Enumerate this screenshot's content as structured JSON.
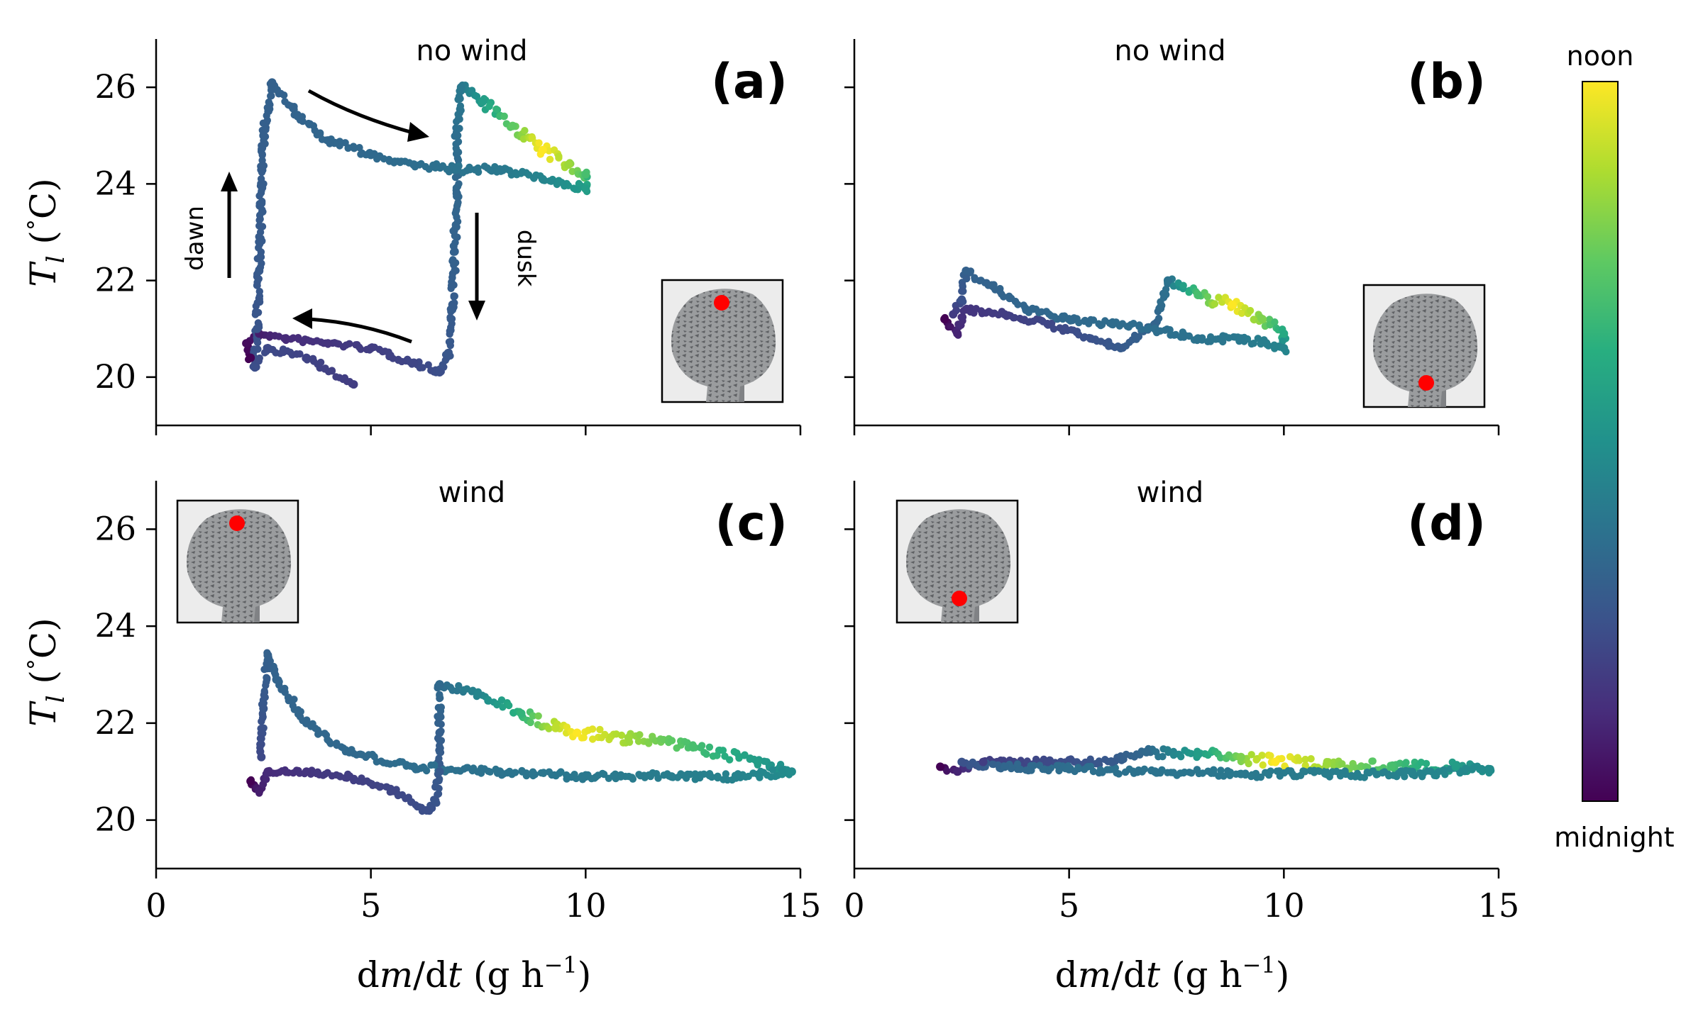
{
  "figure": {
    "xlabel_parts": [
      "d",
      "m",
      "/",
      "d",
      "t",
      " (g h",
      "−1",
      ")"
    ],
    "ylabel_parts": [
      "T",
      "l",
      " (",
      "°",
      "C)"
    ],
    "colorbar": {
      "top_label": "noon",
      "bottom_label": "midnight",
      "colormap": [
        "#440154",
        "#472d7b",
        "#3b528b",
        "#2c728e",
        "#21918c",
        "#28ae80",
        "#5ec962",
        "#addc30",
        "#fde725"
      ]
    }
  },
  "chart_data": [
    {
      "type": "scatter",
      "panel": "(a)",
      "condition": "no wind",
      "xlim": [
        0,
        15
      ],
      "ylim": [
        19,
        27
      ],
      "xticks": [
        0,
        5,
        10,
        15
      ],
      "yticks": [
        20,
        22,
        24,
        26
      ],
      "show_xticklabels": false,
      "inset_marker": "top",
      "annotations": {
        "dawn": "dawn",
        "dusk": "dusk"
      },
      "trajectory": [
        {
          "x": 2.2,
          "y": 20.4,
          "t": 0.0
        },
        {
          "x": 2.1,
          "y": 20.7,
          "t": 0.03
        },
        {
          "x": 2.4,
          "y": 20.9,
          "t": 0.08
        },
        {
          "x": 3.0,
          "y": 20.8,
          "t": 0.12
        },
        {
          "x": 4.0,
          "y": 20.7,
          "t": 0.15
        },
        {
          "x": 5.0,
          "y": 20.6,
          "t": 0.18
        },
        {
          "x": 6.0,
          "y": 20.3,
          "t": 0.21
        },
        {
          "x": 6.6,
          "y": 20.1,
          "t": 0.24
        },
        {
          "x": 6.8,
          "y": 20.5,
          "t": 0.27
        },
        {
          "x": 6.9,
          "y": 21.5,
          "t": 0.29
        },
        {
          "x": 6.95,
          "y": 22.6,
          "t": 0.31
        },
        {
          "x": 7.0,
          "y": 23.8,
          "t": 0.33
        },
        {
          "x": 7.0,
          "y": 25.0,
          "t": 0.36
        },
        {
          "x": 7.1,
          "y": 26.0,
          "t": 0.4
        },
        {
          "x": 7.6,
          "y": 25.7,
          "t": 0.55
        },
        {
          "x": 8.3,
          "y": 25.2,
          "t": 0.75
        },
        {
          "x": 9.0,
          "y": 24.7,
          "t": 1.0
        },
        {
          "x": 9.6,
          "y": 24.4,
          "t": 0.85
        },
        {
          "x": 10.0,
          "y": 24.2,
          "t": 0.7
        },
        {
          "x": 10.0,
          "y": 23.9,
          "t": 0.55
        },
        {
          "x": 9.0,
          "y": 24.1,
          "t": 0.45
        },
        {
          "x": 8.0,
          "y": 24.3,
          "t": 0.4
        },
        {
          "x": 7.0,
          "y": 24.3,
          "t": 0.38
        },
        {
          "x": 6.0,
          "y": 24.4,
          "t": 0.36
        },
        {
          "x": 5.0,
          "y": 24.6,
          "t": 0.34
        },
        {
          "x": 4.0,
          "y": 24.9,
          "t": 0.33
        },
        {
          "x": 3.3,
          "y": 25.4,
          "t": 0.32
        },
        {
          "x": 2.7,
          "y": 26.1,
          "t": 0.31
        },
        {
          "x": 2.5,
          "y": 25.0,
          "t": 0.3
        },
        {
          "x": 2.45,
          "y": 23.6,
          "t": 0.29
        },
        {
          "x": 2.4,
          "y": 22.2,
          "t": 0.28
        },
        {
          "x": 2.35,
          "y": 21.0,
          "t": 0.26
        },
        {
          "x": 2.3,
          "y": 20.2,
          "t": 0.24
        },
        {
          "x": 2.6,
          "y": 20.6,
          "t": 0.22
        },
        {
          "x": 3.5,
          "y": 20.4,
          "t": 0.2
        },
        {
          "x": 4.6,
          "y": 19.85,
          "t": 0.18
        }
      ]
    },
    {
      "type": "scatter",
      "panel": "(b)",
      "condition": "no wind",
      "xlim": [
        0,
        15
      ],
      "ylim": [
        19,
        27
      ],
      "xticks": [
        0,
        5,
        10,
        15
      ],
      "yticks": [
        20,
        22,
        24,
        26
      ],
      "show_xticklabels": false,
      "show_yticklabels": false,
      "inset_marker": "bottom",
      "trajectory": [
        {
          "x": 2.1,
          "y": 21.2,
          "t": 0.0
        },
        {
          "x": 2.4,
          "y": 20.9,
          "t": 0.1
        },
        {
          "x": 2.6,
          "y": 21.4,
          "t": 0.15
        },
        {
          "x": 3.5,
          "y": 21.3,
          "t": 0.18
        },
        {
          "x": 4.5,
          "y": 21.1,
          "t": 0.21
        },
        {
          "x": 5.5,
          "y": 20.8,
          "t": 0.25
        },
        {
          "x": 6.2,
          "y": 20.6,
          "t": 0.28
        },
        {
          "x": 7.0,
          "y": 21.1,
          "t": 0.32
        },
        {
          "x": 7.3,
          "y": 22.0,
          "t": 0.38
        },
        {
          "x": 8.0,
          "y": 21.7,
          "t": 0.7
        },
        {
          "x": 8.8,
          "y": 21.5,
          "t": 1.0
        },
        {
          "x": 9.5,
          "y": 21.2,
          "t": 0.8
        },
        {
          "x": 10.0,
          "y": 20.9,
          "t": 0.6
        },
        {
          "x": 10.0,
          "y": 20.6,
          "t": 0.45
        },
        {
          "x": 9.0,
          "y": 20.8,
          "t": 0.4
        },
        {
          "x": 8.0,
          "y": 20.8,
          "t": 0.38
        },
        {
          "x": 7.0,
          "y": 21.0,
          "t": 0.36
        },
        {
          "x": 6.0,
          "y": 21.1,
          "t": 0.35
        },
        {
          "x": 5.0,
          "y": 21.2,
          "t": 0.34
        },
        {
          "x": 4.0,
          "y": 21.4,
          "t": 0.33
        },
        {
          "x": 3.2,
          "y": 21.9,
          "t": 0.32
        },
        {
          "x": 2.6,
          "y": 22.2,
          "t": 0.31
        },
        {
          "x": 2.5,
          "y": 21.6,
          "t": 0.25
        },
        {
          "x": 2.3,
          "y": 21.3,
          "t": 0.18
        }
      ]
    },
    {
      "type": "scatter",
      "panel": "(c)",
      "condition": "wind",
      "xlim": [
        0,
        15
      ],
      "ylim": [
        19,
        27
      ],
      "xticks": [
        0,
        5,
        10,
        15
      ],
      "yticks": [
        20,
        22,
        24,
        26
      ],
      "inset_marker": "top",
      "trajectory": [
        {
          "x": 2.2,
          "y": 20.8,
          "t": 0.0
        },
        {
          "x": 2.4,
          "y": 20.6,
          "t": 0.08
        },
        {
          "x": 2.6,
          "y": 21.0,
          "t": 0.12
        },
        {
          "x": 3.5,
          "y": 21.0,
          "t": 0.15
        },
        {
          "x": 4.5,
          "y": 20.9,
          "t": 0.18
        },
        {
          "x": 5.5,
          "y": 20.6,
          "t": 0.21
        },
        {
          "x": 6.3,
          "y": 20.2,
          "t": 0.24
        },
        {
          "x": 6.5,
          "y": 20.4,
          "t": 0.26
        },
        {
          "x": 6.6,
          "y": 21.0,
          "t": 0.28
        },
        {
          "x": 6.6,
          "y": 21.8,
          "t": 0.3
        },
        {
          "x": 6.6,
          "y": 22.8,
          "t": 0.34
        },
        {
          "x": 7.5,
          "y": 22.6,
          "t": 0.45
        },
        {
          "x": 8.5,
          "y": 22.2,
          "t": 0.65
        },
        {
          "x": 9.3,
          "y": 21.9,
          "t": 0.9
        },
        {
          "x": 9.8,
          "y": 21.8,
          "t": 1.0
        },
        {
          "x": 11.0,
          "y": 21.7,
          "t": 0.85
        },
        {
          "x": 12.5,
          "y": 21.5,
          "t": 0.7
        },
        {
          "x": 14.0,
          "y": 21.2,
          "t": 0.55
        },
        {
          "x": 14.8,
          "y": 21.0,
          "t": 0.48
        },
        {
          "x": 13.5,
          "y": 20.9,
          "t": 0.44
        },
        {
          "x": 12.0,
          "y": 20.9,
          "t": 0.42
        },
        {
          "x": 10.0,
          "y": 20.9,
          "t": 0.4
        },
        {
          "x": 8.0,
          "y": 21.0,
          "t": 0.38
        },
        {
          "x": 6.0,
          "y": 21.1,
          "t": 0.36
        },
        {
          "x": 4.5,
          "y": 21.4,
          "t": 0.34
        },
        {
          "x": 3.5,
          "y": 22.0,
          "t": 0.33
        },
        {
          "x": 2.8,
          "y": 22.9,
          "t": 0.32
        },
        {
          "x": 2.6,
          "y": 23.4,
          "t": 0.31
        },
        {
          "x": 2.5,
          "y": 22.3,
          "t": 0.27
        },
        {
          "x": 2.45,
          "y": 21.3,
          "t": 0.22
        }
      ]
    },
    {
      "type": "scatter",
      "panel": "(d)",
      "condition": "wind",
      "xlim": [
        0,
        15
      ],
      "ylim": [
        19,
        27
      ],
      "xticks": [
        0,
        5,
        10,
        15
      ],
      "yticks": [
        20,
        22,
        24,
        26
      ],
      "show_yticklabels": false,
      "inset_marker": "bottom",
      "trajectory": [
        {
          "x": 2.0,
          "y": 21.1,
          "t": 0.0
        },
        {
          "x": 2.4,
          "y": 21.0,
          "t": 0.1
        },
        {
          "x": 3.0,
          "y": 21.2,
          "t": 0.18
        },
        {
          "x": 4.5,
          "y": 21.2,
          "t": 0.22
        },
        {
          "x": 6.0,
          "y": 21.2,
          "t": 0.28
        },
        {
          "x": 6.8,
          "y": 21.4,
          "t": 0.34
        },
        {
          "x": 8.0,
          "y": 21.35,
          "t": 0.55
        },
        {
          "x": 9.0,
          "y": 21.3,
          "t": 0.8
        },
        {
          "x": 9.8,
          "y": 21.2,
          "t": 1.0
        },
        {
          "x": 11.0,
          "y": 21.15,
          "t": 0.85
        },
        {
          "x": 12.5,
          "y": 21.1,
          "t": 0.7
        },
        {
          "x": 14.0,
          "y": 21.1,
          "t": 0.55
        },
        {
          "x": 14.8,
          "y": 21.05,
          "t": 0.48
        },
        {
          "x": 13.0,
          "y": 20.95,
          "t": 0.44
        },
        {
          "x": 11.0,
          "y": 20.95,
          "t": 0.42
        },
        {
          "x": 9.0,
          "y": 20.95,
          "t": 0.4
        },
        {
          "x": 7.0,
          "y": 21.0,
          "t": 0.38
        },
        {
          "x": 5.0,
          "y": 21.05,
          "t": 0.36
        },
        {
          "x": 3.5,
          "y": 21.1,
          "t": 0.33
        },
        {
          "x": 2.5,
          "y": 21.2,
          "t": 0.25
        }
      ]
    }
  ]
}
